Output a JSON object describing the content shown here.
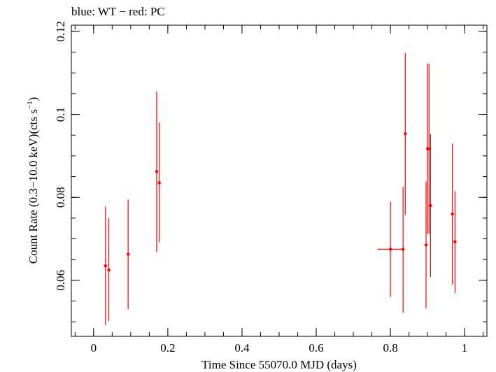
{
  "chart_data": {
    "type": "scatter",
    "title": "blue: WT − red: PC",
    "xlabel": "Time Since 55070.0 MJD (days)",
    "ylabel_main": "Count Rate (0.3−10.0 keV)(cts s",
    "ylabel_sup": "−1",
    "ylabel_close": ")",
    "xlim": [
      -0.06,
      1.06
    ],
    "ylim": [
      0.0465,
      0.1215
    ],
    "x_ticks": [
      0,
      0.2,
      0.4,
      0.6,
      0.8,
      1
    ],
    "x_tick_labels": [
      "0",
      "0.2",
      "0.4",
      "0.6",
      "0.8",
      "1"
    ],
    "x_minor_step": 0.05,
    "y_ticks": [
      0.06,
      0.08,
      0.1,
      0.12
    ],
    "y_tick_labels": [
      "0.06",
      "0.08",
      "0.1",
      "0.12"
    ],
    "y_minor_step": 0.005,
    "grid": false,
    "series": [
      {
        "color": "#ff0000",
        "points": [
          {
            "x": 0.032,
            "y": 0.0635,
            "ylo": 0.0492,
            "yhi": 0.0778,
            "xerr": 0.0
          },
          {
            "x": 0.041,
            "y": 0.0625,
            "ylo": 0.0502,
            "yhi": 0.075,
            "xerr": 0.0
          },
          {
            "x": 0.093,
            "y": 0.0663,
            "ylo": 0.053,
            "yhi": 0.0795,
            "xerr": 0.0
          },
          {
            "x": 0.17,
            "y": 0.0862,
            "ylo": 0.0668,
            "yhi": 0.1055,
            "xerr": 0.0
          },
          {
            "x": 0.177,
            "y": 0.0835,
            "ylo": 0.0692,
            "yhi": 0.098,
            "xerr": 0.0
          },
          {
            "x": 0.8,
            "y": 0.0675,
            "ylo": 0.056,
            "yhi": 0.079,
            "xerr": 0.035
          },
          {
            "x": 0.834,
            "y": 0.0675,
            "ylo": 0.0522,
            "yhi": 0.0825,
            "xerr": 0.0
          },
          {
            "x": 0.84,
            "y": 0.0953,
            "ylo": 0.0758,
            "yhi": 0.1148,
            "xerr": 0.0
          },
          {
            "x": 0.896,
            "y": 0.0685,
            "ylo": 0.0532,
            "yhi": 0.0838,
            "xerr": 0.0
          },
          {
            "x": 0.9,
            "y": 0.0917,
            "ylo": 0.0712,
            "yhi": 0.1122,
            "xerr": 0.0
          },
          {
            "x": 0.904,
            "y": 0.0917,
            "ylo": 0.0712,
            "yhi": 0.1122,
            "xerr": 0.0
          },
          {
            "x": 0.908,
            "y": 0.078,
            "ylo": 0.0608,
            "yhi": 0.0952,
            "xerr": 0.0
          },
          {
            "x": 0.967,
            "y": 0.076,
            "ylo": 0.059,
            "yhi": 0.093,
            "xerr": 0.0
          },
          {
            "x": 0.974,
            "y": 0.0693,
            "ylo": 0.057,
            "yhi": 0.0815,
            "xerr": 0.0
          }
        ]
      }
    ]
  }
}
